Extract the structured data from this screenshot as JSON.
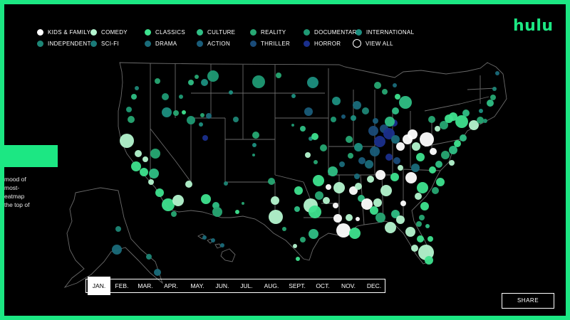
{
  "brand": {
    "logo_text": "hulu",
    "accent": "#1ce783"
  },
  "legend": [
    {
      "label": "KIDS & FAMILY",
      "color": "#ffffff",
      "icon": "circle-dot"
    },
    {
      "label": "COMEDY",
      "color": "#b4f5cf",
      "icon": "circle-dot"
    },
    {
      "label": "CLASSICS",
      "color": "#3ee28e",
      "icon": "circle-dot"
    },
    {
      "label": "CULTURE",
      "color": "#2fbf85",
      "icon": "circle-dot"
    },
    {
      "label": "REALITY",
      "color": "#27a873",
      "icon": "circle-dot"
    },
    {
      "label": "DOCUMENTARY",
      "color": "#1f9a74",
      "icon": "circle-dot"
    },
    {
      "label": "INTERNATIONAL",
      "color": "#1c8f80",
      "icon": "circle-dot"
    },
    {
      "label": "INDEPENDENT",
      "color": "#1d8676",
      "icon": "circle-dot"
    },
    {
      "label": "SCI-FI",
      "color": "#1a7a78",
      "icon": "circle-dot"
    },
    {
      "label": "DRAMA",
      "color": "#1a6c7a",
      "icon": "circle-dot"
    },
    {
      "label": "ACTION",
      "color": "#195c79",
      "icon": "circle-dot"
    },
    {
      "label": "THRILLER",
      "color": "#1a4b78",
      "icon": "circle-dot"
    },
    {
      "label": "HORROR",
      "color": "#1a2f8c",
      "icon": "circle-dot"
    },
    {
      "label": "VIEW ALL",
      "color": "#000000",
      "icon": "circle-outline"
    }
  ],
  "side_panel": {
    "lines": [
      "mood of",
      "most-",
      "eatmap",
      "the top of"
    ]
  },
  "months": [
    "JAN.",
    "FEB.",
    "MAR.",
    "APR.",
    "MAY.",
    "JUN.",
    "JUL.",
    "AUG.",
    "SEPT.",
    "OCT.",
    "NOV.",
    "DEC."
  ],
  "active_month": "JAN.",
  "share_label": "SHARE"
}
